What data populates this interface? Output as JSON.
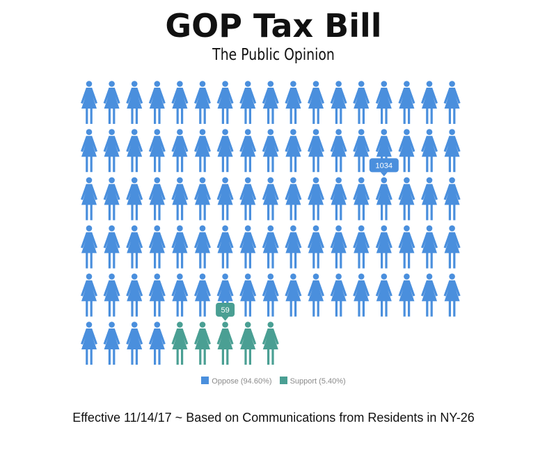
{
  "title": "GOP Tax Bill",
  "subtitle": "The Public Opinion",
  "footer": "Effective 11/14/17 ~ Based on Communications from Residents in NY-26",
  "colors": {
    "oppose": "#4a8fdd",
    "support": "#4a9f93"
  },
  "chart_data": {
    "type": "pictograph",
    "icon": "person-female-icon",
    "icons_total": 94,
    "series": [
      {
        "name": "Oppose",
        "label": "Oppose (94.60%)",
        "count": 1034,
        "percent": 94.6,
        "icons": 89,
        "tooltip": "1034"
      },
      {
        "name": "Support",
        "label": "Support (5.40%)",
        "count": 59,
        "percent": 5.4,
        "icons": 5,
        "tooltip": "59"
      }
    ],
    "legend": "bottom"
  }
}
